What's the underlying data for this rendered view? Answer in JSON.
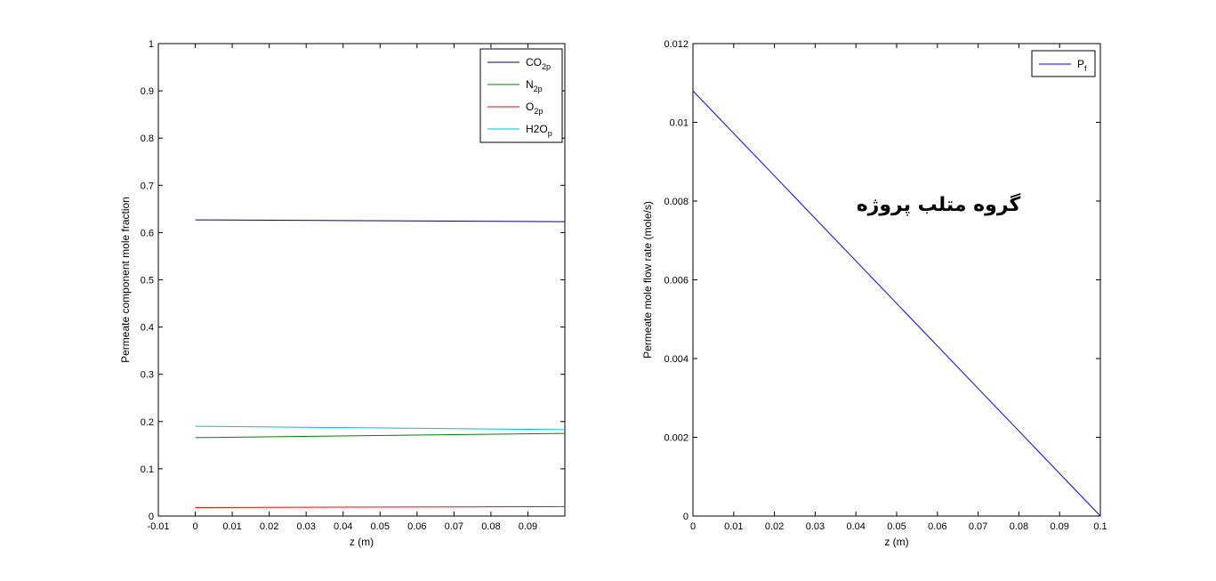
{
  "chart_data": [
    {
      "type": "line",
      "xlabel": "z (m)",
      "ylabel": "Permeate component mole fraction",
      "xlim": [
        -0.01,
        0.1
      ],
      "ylim": [
        0,
        1
      ],
      "xticks": [
        -0.01,
        0,
        0.01,
        0.02,
        0.03,
        0.04,
        0.05,
        0.06,
        0.07,
        0.08,
        0.09
      ],
      "xtick_labels": [
        "-0.01",
        "0",
        "0.01",
        "0.02",
        "0.03",
        "0.04",
        "0.05",
        "0.06",
        "0.07",
        "0.08",
        "0.09"
      ],
      "yticks": [
        0,
        0.1,
        0.2,
        0.3,
        0.4,
        0.5,
        0.6,
        0.7,
        0.8,
        0.9,
        1
      ],
      "ytick_labels": [
        "0",
        "0.1",
        "0.2",
        "0.3",
        "0.4",
        "0.5",
        "0.6",
        "0.7",
        "0.8",
        "0.9",
        "1"
      ],
      "legend_position": "top-right",
      "series": [
        {
          "name": "CO",
          "sub": "2p",
          "color": "#00007f",
          "x": [
            0,
            0.1
          ],
          "y": [
            0.627,
            0.623
          ]
        },
        {
          "name": "N",
          "sub": "2p",
          "color": "#007f00",
          "x": [
            0,
            0.1
          ],
          "y": [
            0.166,
            0.175
          ]
        },
        {
          "name": "O",
          "sub": "2p",
          "color": "#ff0000",
          "x": [
            0,
            0.1
          ],
          "y": [
            0.018,
            0.02
          ]
        },
        {
          "name": "H2O",
          "sub": "p",
          "color": "#00bfdf",
          "x": [
            0,
            0.1
          ],
          "y": [
            0.19,
            0.183
          ]
        }
      ]
    },
    {
      "type": "line",
      "xlabel": "z (m)",
      "ylabel": "Permeate mole flow rate (mole/s)",
      "xlim": [
        0,
        0.1
      ],
      "ylim": [
        0,
        0.012
      ],
      "xticks": [
        0,
        0.01,
        0.02,
        0.03,
        0.04,
        0.05,
        0.06,
        0.07,
        0.08,
        0.09,
        0.1
      ],
      "xtick_labels": [
        "0",
        "0.01",
        "0.02",
        "0.03",
        "0.04",
        "0.05",
        "0.06",
        "0.07",
        "0.08",
        "0.09",
        "0.1"
      ],
      "yticks": [
        0,
        0.002,
        0.004,
        0.006,
        0.008,
        0.01,
        0.012
      ],
      "ytick_labels": [
        "0",
        "0.002",
        "0.004",
        "0.006",
        "0.008",
        "0.01",
        "0.012"
      ],
      "legend_position": "top-right",
      "series": [
        {
          "name": "P",
          "sub": "f",
          "color": "#0000ff",
          "x": [
            0,
            0.1
          ],
          "y": [
            0.0108,
            0
          ]
        }
      ]
    }
  ],
  "watermark": "گروه متلب پروژه"
}
